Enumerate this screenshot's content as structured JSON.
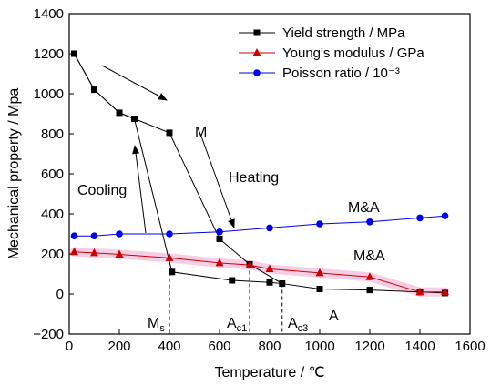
{
  "chart_data": {
    "type": "line",
    "title": "",
    "xlabel": "Temperature / ℃",
    "ylabel": "Mechanical property / Mpa",
    "xlim": [
      0,
      1600
    ],
    "ylim": [
      -200,
      1400
    ],
    "x_ticks": [
      0,
      200,
      400,
      600,
      800,
      1000,
      1200,
      1400,
      1600
    ],
    "y_ticks": [
      -200,
      0,
      200,
      400,
      600,
      800,
      1000,
      1200,
      1400
    ],
    "grid": false,
    "legend_position": "top-right",
    "series": [
      {
        "name": "Yield strength / MPa",
        "color": "#000000",
        "marker": "square",
        "segments": [
          {
            "x": [
              20,
              100,
              200,
              260,
              400,
              600,
              720,
              850
            ],
            "y": [
              1200,
              1020,
              905,
              875,
              805,
              275,
              148,
              52
            ]
          },
          {
            "x": [
              20,
              100,
              200,
              260,
              410,
              650,
              800,
              850,
              1000,
              1200,
              1400,
              1500
            ],
            "y": [
              1200,
              1020,
              905,
              875,
              110,
              68,
              58,
              52,
              25,
              20,
              10,
              5
            ]
          }
        ]
      },
      {
        "name": "Young's modulus / GPa",
        "color": "#cc0000",
        "marker": "triangle",
        "x": [
          20,
          100,
          200,
          400,
          600,
          720,
          800,
          1000,
          1200,
          1400,
          1500
        ],
        "y": [
          210,
          205,
          198,
          180,
          155,
          145,
          125,
          105,
          85,
          10,
          10
        ]
      },
      {
        "name": "Poisson ratio / 10⁻³",
        "color": "#0000ee",
        "marker": "circle",
        "x": [
          20,
          100,
          200,
          400,
          600,
          800,
          1000,
          1200,
          1400,
          1500
        ],
        "y": [
          290,
          290,
          300,
          300,
          310,
          330,
          350,
          360,
          380,
          390
        ]
      }
    ],
    "annotations": {
      "cooling": "Cooling",
      "heating": "Heating",
      "m": "M",
      "a": "A",
      "ma_blue": "M&A",
      "ma_red": "M&A",
      "ms_main": "M",
      "ms_sub": "s",
      "ac1_main": "A",
      "ac1_sub": "c1",
      "ac3_main": "A",
      "ac3_sub": "c3"
    },
    "transition_lines_x": [
      400,
      720,
      850
    ]
  },
  "colors": {
    "axis": "#000000",
    "highlight_band": "#f7c6e3"
  }
}
